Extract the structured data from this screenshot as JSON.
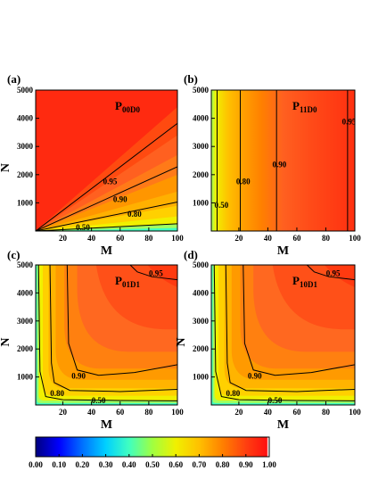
{
  "chart_data": [
    {
      "type": "heatmap",
      "panel_label": "(a)",
      "series_label": "P",
      "series_sub": "00D0",
      "xlabel": "M",
      "ylabel": "N",
      "xlim": [
        1,
        100
      ],
      "ylim": [
        1,
        5000
      ],
      "xticks": [
        20,
        40,
        60,
        80,
        100
      ],
      "yticks": [
        1000,
        2000,
        3000,
        4000,
        5000
      ],
      "contours": [
        {
          "level": "0.95",
          "points": [
            [
              1,
              1
            ],
            [
              100,
              3820
            ]
          ],
          "label_at": [
            53,
            1760
          ]
        },
        {
          "level": "0.90",
          "points": [
            [
              1,
              1
            ],
            [
              100,
              2280
            ]
          ],
          "label_at": [
            60,
            1120
          ]
        },
        {
          "level": "0.80",
          "points": [
            [
              1,
              1
            ],
            [
              100,
              1030
            ]
          ],
          "label_at": [
            70,
            610
          ]
        },
        {
          "level": "0.50",
          "points": [
            [
              1,
              1
            ],
            [
              100,
              260
            ]
          ],
          "label_at": [
            34,
            130
          ]
        }
      ]
    },
    {
      "type": "heatmap",
      "panel_label": "(b)",
      "series_label": "P",
      "series_sub": "11D0",
      "xlabel": "M",
      "ylabel": "",
      "xlim": [
        1,
        100
      ],
      "ylim": [
        1,
        5000
      ],
      "xticks": [
        20,
        40,
        60,
        80,
        100
      ],
      "yticks": [
        1000,
        2000,
        3000,
        4000,
        5000
      ],
      "contours": [
        {
          "level": "0.50",
          "points": [
            [
              5,
              1
            ],
            [
              5,
              5000
            ]
          ],
          "label_at": [
            8,
            920
          ]
        },
        {
          "level": "0.80",
          "points": [
            [
              21,
              1
            ],
            [
              21,
              5000
            ]
          ],
          "label_at": [
            23,
            1760
          ]
        },
        {
          "level": "0.90",
          "points": [
            [
              46,
              1
            ],
            [
              46,
              5000
            ]
          ],
          "label_at": [
            48,
            2360
          ]
        },
        {
          "level": "0.95",
          "points": [
            [
              95,
              1
            ],
            [
              95,
              5000
            ]
          ],
          "label_at": [
            96,
            3880
          ]
        }
      ]
    },
    {
      "type": "heatmap",
      "panel_label": "(c)",
      "series_label": "P",
      "series_sub": "01D1",
      "xlabel": "M",
      "ylabel": "N",
      "xlim": [
        1,
        100
      ],
      "ylim": [
        1,
        5000
      ],
      "xticks": [
        20,
        40,
        60,
        80,
        100
      ],
      "yticks": [
        1000,
        2000,
        3000,
        4000,
        5000
      ],
      "contours": [
        {
          "level": "0.50",
          "points": [
            [
              3,
              5000
            ],
            [
              4,
              1200
            ],
            [
              8,
              300
            ],
            [
              20,
              190
            ],
            [
              60,
              160
            ],
            [
              100,
              150
            ]
          ],
          "label_at": [
            45,
            165
          ]
        },
        {
          "level": "0.80",
          "points": [
            [
              11,
              5000
            ],
            [
              12,
              1500
            ],
            [
              14,
              800
            ],
            [
              25,
              520
            ],
            [
              60,
              480
            ],
            [
              100,
              560
            ]
          ],
          "label_at": [
            16,
            420
          ]
        },
        {
          "level": "0.90",
          "points": [
            [
              23,
              5000
            ],
            [
              24,
              2200
            ],
            [
              30,
              1250
            ],
            [
              45,
              1060
            ],
            [
              70,
              1160
            ],
            [
              100,
              1440
            ]
          ],
          "label_at": [
            31,
            1030
          ]
        },
        {
          "level": "0.95",
          "points": [
            [
              67,
              5000
            ],
            [
              72,
              4750
            ],
            [
              82,
              4580
            ],
            [
              100,
              4470
            ]
          ],
          "label_at": [
            85,
            4700
          ]
        }
      ]
    },
    {
      "type": "heatmap",
      "panel_label": "(d)",
      "series_label": "P",
      "series_sub": "10D1",
      "xlabel": "M",
      "ylabel": "N",
      "xlim": [
        1,
        100
      ],
      "ylim": [
        1,
        5000
      ],
      "xticks": [
        20,
        40,
        60,
        80,
        100
      ],
      "yticks": [
        1000,
        2000,
        3000,
        4000,
        5000
      ],
      "contours": [
        {
          "level": "0.50",
          "points": [
            [
              3,
              5000
            ],
            [
              4,
              1200
            ],
            [
              8,
              300
            ],
            [
              20,
              190
            ],
            [
              60,
              160
            ],
            [
              100,
              150
            ]
          ],
          "label_at": [
            45,
            165
          ]
        },
        {
          "level": "0.80",
          "points": [
            [
              11,
              5000
            ],
            [
              12,
              1500
            ],
            [
              14,
              800
            ],
            [
              25,
              520
            ],
            [
              60,
              480
            ],
            [
              100,
              560
            ]
          ],
          "label_at": [
            16,
            420
          ]
        },
        {
          "level": "0.90",
          "points": [
            [
              23,
              5000
            ],
            [
              24,
              2200
            ],
            [
              30,
              1250
            ],
            [
              45,
              1060
            ],
            [
              70,
              1160
            ],
            [
              100,
              1440
            ]
          ],
          "label_at": [
            31,
            1030
          ]
        },
        {
          "level": "0.95",
          "points": [
            [
              67,
              5000
            ],
            [
              72,
              4750
            ],
            [
              82,
              4580
            ],
            [
              100,
              4470
            ]
          ],
          "label_at": [
            85,
            4700
          ]
        }
      ]
    }
  ],
  "colorbar": {
    "ticks": [
      "0.00",
      "0.10",
      "0.20",
      "0.30",
      "0.40",
      "0.50",
      "0.60",
      "0.70",
      "0.80",
      "0.90",
      "1.00"
    ],
    "colors": [
      "#00007f",
      "#0040ff",
      "#00c0ff",
      "#40ffe0",
      "#a0ff60",
      "#f0f000",
      "#ffc000",
      "#ff9000",
      "#ff6020",
      "#ff3010",
      "#ffffff"
    ]
  }
}
